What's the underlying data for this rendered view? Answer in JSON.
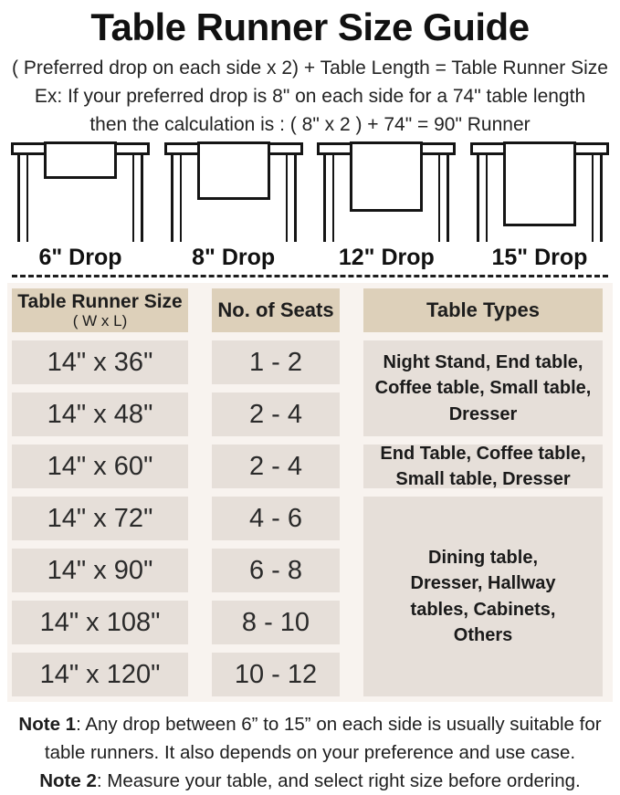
{
  "title": "Table Runner Size Guide",
  "formula": "( Preferred drop on each side x 2) + Table Length = Table Runner Size",
  "example": {
    "line1": "Ex: If your preferred drop is 8\" on each side for a 74\" table length",
    "line2": "then the calculation is : ( 8\" x 2 ) + 74\" = 90\" Runner"
  },
  "drops": [
    {
      "label": "6\" Drop"
    },
    {
      "label": "8\" Drop"
    },
    {
      "label": "12\" Drop"
    },
    {
      "label": "15\" Drop"
    }
  ],
  "size_table": {
    "header": {
      "col1_title": "Table Runner Size",
      "col1_sub": "( W x L)",
      "col2": "No. of Seats",
      "col3": "Table Types"
    },
    "rows": [
      {
        "size": "14\" x 36\"",
        "seats": "1 - 2"
      },
      {
        "size": "14\" x 48\"",
        "seats": "2 - 4"
      },
      {
        "size": "14\" x 60\"",
        "seats": "2 - 4"
      },
      {
        "size": "14\" x 72\"",
        "seats": "4 - 6"
      },
      {
        "size": "14\" x 90\"",
        "seats": "6 - 8"
      },
      {
        "size": "14\" x 108\"",
        "seats": "8 - 10"
      },
      {
        "size": "14\" x 120\"",
        "seats": "10 - 12"
      }
    ],
    "type_groups": [
      {
        "text": "Night Stand, End table, Coffee table, Small table, Dresser",
        "spans_rows": "1-2"
      },
      {
        "text": "End Table, Coffee table, Small table, Dresser",
        "spans_rows": "3"
      },
      {
        "text": "Dining table, Dresser, Hallway tables, Cabinets, Others",
        "spans_rows": "4-7"
      }
    ]
  },
  "notes": [
    {
      "label": "Note 1",
      "text": ": Any drop between 6” to 15” on each side is usually suitable for table runners. It also depends on your preference and use case."
    },
    {
      "label": "Note 2",
      "text": ": Measure your table, and select right size before ordering."
    }
  ],
  "colors": {
    "header_cell_bg": "#ddd0ba",
    "data_cell_bg": "#e6dfd9",
    "panel_bg": "#f8f3ef",
    "line_color": "#1d1d1d",
    "text_color": "#1d1d1d"
  }
}
